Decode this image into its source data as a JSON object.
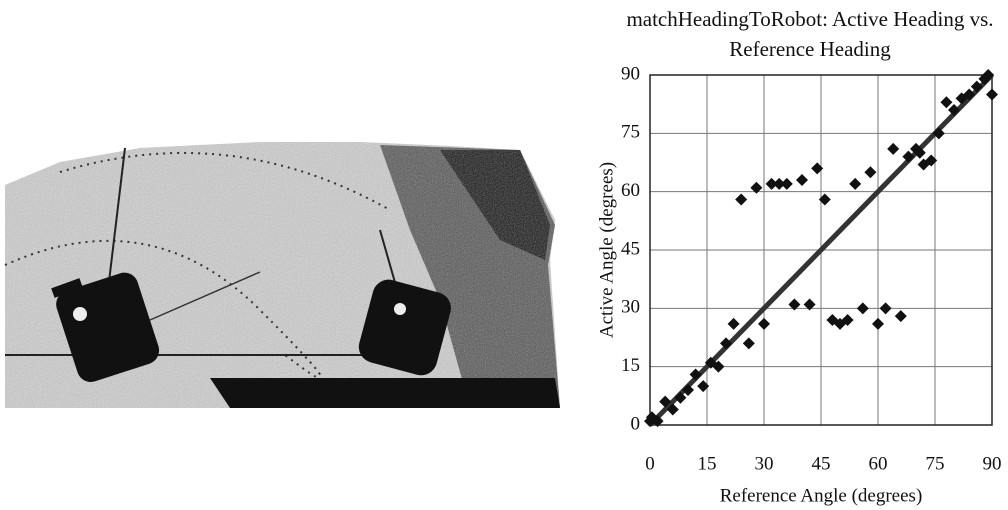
{
  "chart_data": {
    "type": "scatter",
    "title": "matchHeadingToRobot: Active Heading vs. Reference Heading",
    "x_label": "Reference Angle (degrees)",
    "y_label": "Active Angle (degrees)",
    "x": [
      0,
      0.5,
      2,
      4,
      6,
      8,
      10,
      12,
      14,
      16,
      18,
      20,
      22,
      24,
      26,
      28,
      30,
      32,
      34,
      36,
      38,
      40,
      42,
      44,
      46,
      48,
      50,
      52,
      54,
      56,
      58,
      60,
      62,
      64,
      66,
      68,
      70,
      71,
      72,
      74,
      76,
      78,
      80,
      82,
      84,
      86,
      88,
      89,
      90
    ],
    "values": [
      1,
      2,
      1,
      6,
      4,
      7,
      9,
      13,
      10,
      16,
      15,
      21,
      26,
      58,
      21,
      61,
      26,
      62,
      62,
      62,
      31,
      63,
      31,
      66,
      58,
      27,
      26,
      27,
      62,
      30,
      65,
      26,
      30,
      71,
      28,
      69,
      71,
      70,
      67,
      68,
      75,
      83,
      81,
      84,
      85,
      87,
      89,
      90,
      85
    ],
    "color": "#111111",
    "trend_line": {
      "x": [
        0,
        90
      ],
      "values": [
        0,
        90
      ],
      "color": "#333333"
    },
    "xlim": [
      0,
      90
    ],
    "ylim": [
      0,
      90
    ],
    "xticks": [
      0,
      15,
      30,
      45,
      60,
      75,
      90
    ],
    "yticks": [
      0,
      15,
      30,
      45,
      60,
      75,
      90
    ],
    "grid": true
  }
}
